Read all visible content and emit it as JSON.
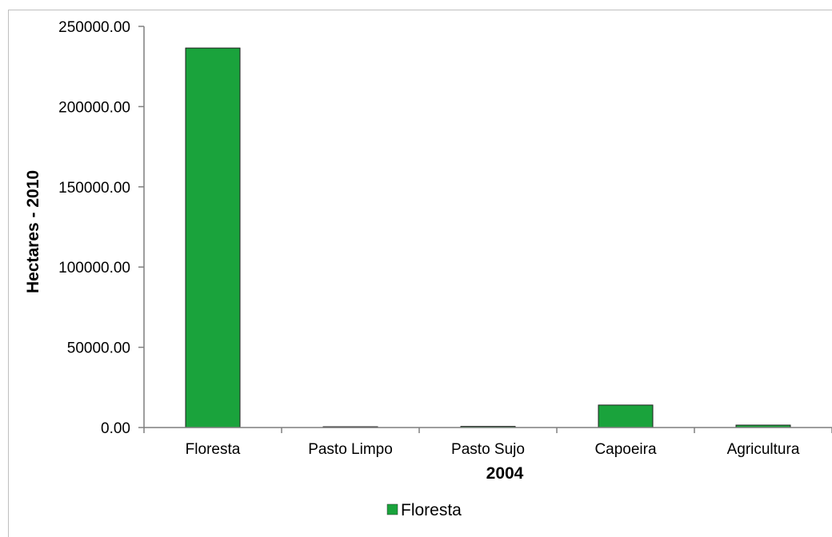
{
  "chart_data": {
    "type": "bar",
    "categories": [
      "Floresta",
      "Pasto Limpo",
      "Pasto Sujo",
      "Capoeira",
      "Agricultura"
    ],
    "series": [
      {
        "name": "Floresta",
        "color": "#1aa33c",
        "values": [
          236500,
          150,
          700,
          14000,
          1500
        ]
      }
    ],
    "title": "",
    "xlabel": "2004",
    "ylabel": "Hectares - 2010",
    "ylim": [
      0,
      250000
    ],
    "yticks": [
      0,
      50000,
      100000,
      150000,
      200000,
      250000
    ],
    "ytick_labels": [
      "0.00",
      "50000.00",
      "100000.00",
      "150000.00",
      "200000.00",
      "250000.00"
    ],
    "grid": false,
    "legend_position": "bottom"
  }
}
